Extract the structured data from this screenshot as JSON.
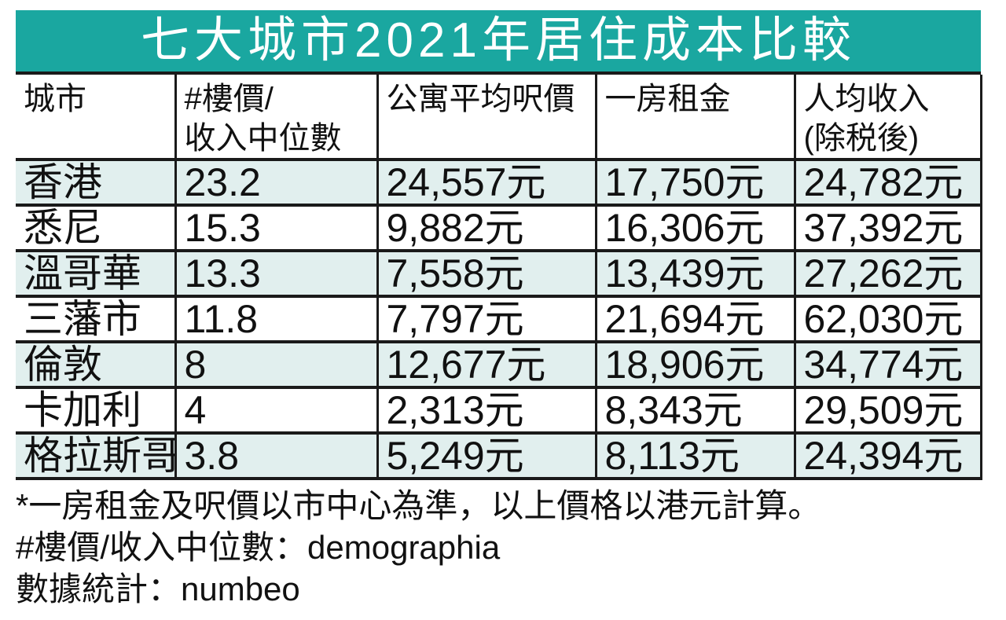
{
  "title": "七大城市2021年居住成本比較",
  "colors": {
    "title_bg": "#1aa7a0",
    "row_alt_bg": "#e1efee",
    "border_color": "#1a1a1a",
    "title_text": "#ffffff"
  },
  "table": {
    "header_lines": [
      {
        "line1": "城市",
        "line2": ""
      },
      {
        "line1": "#樓價/",
        "line2": "收入中位數"
      },
      {
        "line1": "公寓平均呎價",
        "line2": ""
      },
      {
        "line1": "一房租金",
        "line2": ""
      },
      {
        "line1": "人均收入",
        "line2": "(除税後)"
      }
    ]
  },
  "chart_data": {
    "type": "table",
    "title": "七大城市2021年居住成本比較",
    "columns": [
      "城市",
      "#樓價/收入中位數",
      "公寓平均呎價",
      "一房租金",
      "人均收入(除税後)"
    ],
    "rows": [
      [
        "香港",
        "23.2",
        "24,557元",
        "17,750元",
        "24,782元"
      ],
      [
        "悉尼",
        "15.3",
        "9,882元",
        "16,306元",
        "37,392元"
      ],
      [
        "溫哥華",
        "13.3",
        "7,558元",
        "13,439元",
        "27,262元"
      ],
      [
        "三藩市",
        "11.8",
        "7,797元",
        "21,694元",
        "62,030元"
      ],
      [
        "倫敦",
        "8",
        "12,677元",
        "18,906元",
        "34,774元"
      ],
      [
        "卡加利",
        "4",
        "2,313元",
        "8,343元",
        "29,509元"
      ],
      [
        "格拉斯哥",
        "3.8",
        "5,249元",
        "8,113元",
        "24,394元"
      ]
    ],
    "footnotes": [
      "*一房租金及呎價以市中心為準，以上價格以港元計算。",
      "#樓價/收入中位數：demographia",
      "數據統計：numbeo"
    ]
  }
}
